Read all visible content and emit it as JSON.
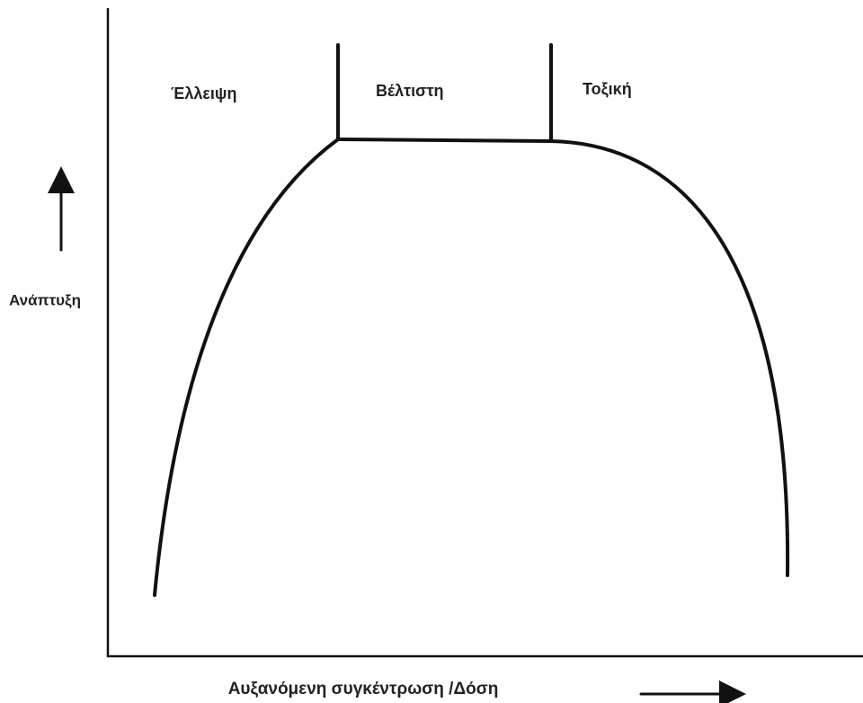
{
  "regions": [
    "Έλλειψη",
    "Βέλτιστη",
    "Τοξική"
  ],
  "y_axis_label": "Ανάπτυξη",
  "x_axis_label": "Αυξανόμενη συγκέντρωση /Δόση"
}
